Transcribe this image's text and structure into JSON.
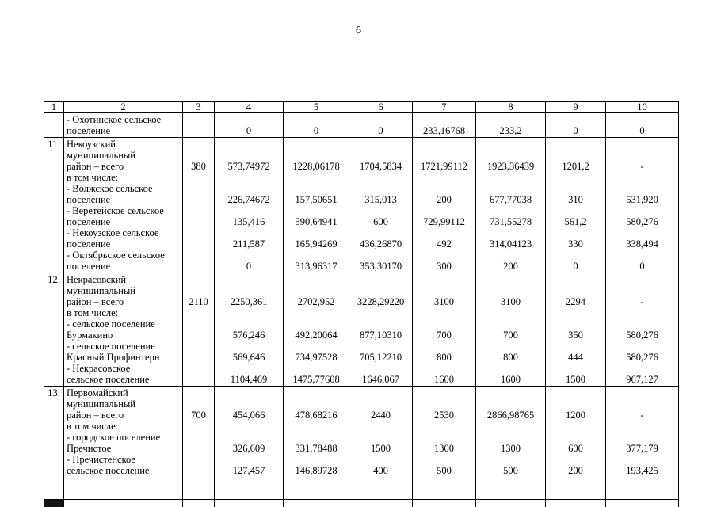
{
  "page": {
    "number": "6"
  },
  "colors": {
    "text": "#000000",
    "background": "#ffffff",
    "border": "#000000"
  },
  "table": {
    "header": [
      "1",
      "2",
      "3",
      "4",
      "5",
      "6",
      "7",
      "8",
      "9",
      "10"
    ],
    "blocks": [
      {
        "num": "",
        "name_lines": [
          "- Охотинское сельское",
          "поселение"
        ],
        "entries": [
          {
            "line": 1,
            "c4": "0",
            "c5": "0",
            "c6": "0",
            "c7": "233,16768",
            "c8": "233,2",
            "c9": "0",
            "c10": "0"
          }
        ]
      },
      {
        "num": "11.",
        "name_lines": [
          "Некоузский",
          "муниципальный",
          "район – всего",
          "в том числе:",
          "- Волжское сельское",
          "поселение",
          "- Веретейское сельское",
          "поселение",
          "- Некоузское  сельское",
          "поселение",
          "- Октябрьское сельское",
          "поселение"
        ],
        "entries": [
          {
            "line": 2,
            "c3": "380",
            "c4": "573,74972",
            "c5": "1228,06178",
            "c6": "1704,5834",
            "c7": "1721,99112",
            "c8": "1923,36439",
            "c9": "1201,2",
            "c10": "-"
          },
          {
            "line": 5,
            "c4": "226,74672",
            "c5": "157,50651",
            "c6": "315,013",
            "c7": "200",
            "c8": "677,77038",
            "c9": "310",
            "c10": "531,920"
          },
          {
            "line": 7,
            "c4": "135,416",
            "c5": "590,64941",
            "c6": "600",
            "c7": "729,99112",
            "c8": "731,55278",
            "c9": "561,2",
            "c10": "580,276"
          },
          {
            "line": 9,
            "c4": "211,587",
            "c5": "165,94269",
            "c6": "436,26870",
            "c7": "492",
            "c8": "314,04123",
            "c9": "330",
            "c10": "338,494"
          },
          {
            "line": 11,
            "c4": "0",
            "c5": "313,96317",
            "c6": "353,30170",
            "c7": "300",
            "c8": "200",
            "c9": "0",
            "c10": "0"
          }
        ]
      },
      {
        "num": "12.",
        "name_lines": [
          "Некрасовский",
          "муниципальный",
          "район – всего",
          "в том числе:",
          "- сельское поселение",
          "Бурмакино",
          "- сельское поселение",
          "Красный Профинтерн",
          "- Некрасовское",
          "сельское поселение"
        ],
        "entries": [
          {
            "line": 2,
            "c3": "2110",
            "c4": "2250,361",
            "c5": "2702,952",
            "c6": "3228,29220",
            "c7": "3100",
            "c8": "3100",
            "c9": "2294",
            "c10": "-"
          },
          {
            "line": 5,
            "c4": "576,246",
            "c5": "492,20064",
            "c6": "877,10310",
            "c7": "700",
            "c8": "700",
            "c9": "350",
            "c10": "580,276"
          },
          {
            "line": 7,
            "c4": "569,646",
            "c5": "734,97528",
            "c6": "705,12210",
            "c7": "800",
            "c8": "800",
            "c9": "444",
            "c10": "580,276"
          },
          {
            "line": 9,
            "c4": "1104,469",
            "c5": "1475,77608",
            "c6": "1646,067",
            "c7": "1600",
            "c8": "1600",
            "c9": "1500",
            "c10": "967,127"
          }
        ]
      },
      {
        "num": "13.",
        "name_lines": [
          "Первомайский",
          "муниципальный",
          "район – всего",
          "в том числе:",
          "- городское поселение",
          "Пречистое",
          "- Пречистенское",
          "сельское поселение",
          "",
          ""
        ],
        "entries": [
          {
            "line": 2,
            "c3": "700",
            "c4": "454,066",
            "c5": "478,68216",
            "c6": "2440",
            "c7": "2530",
            "c8": "2866,98765",
            "c9": "1200",
            "c10": "-"
          },
          {
            "line": 5,
            "c4": "326,609",
            "c5": "331,78488",
            "c6": "1500",
            "c7": "1300",
            "c8": "1300",
            "c9": "600",
            "c10": "377,179"
          },
          {
            "line": 7,
            "c4": "127,457",
            "c5": "146,89728",
            "c6": "400",
            "c7": "500",
            "c8": "500",
            "c9": "200",
            "c10": "193,425"
          }
        ]
      },
      {
        "num": "",
        "name_lines": [
          "",
          ""
        ],
        "entries": [],
        "dark_cell": true
      }
    ]
  }
}
